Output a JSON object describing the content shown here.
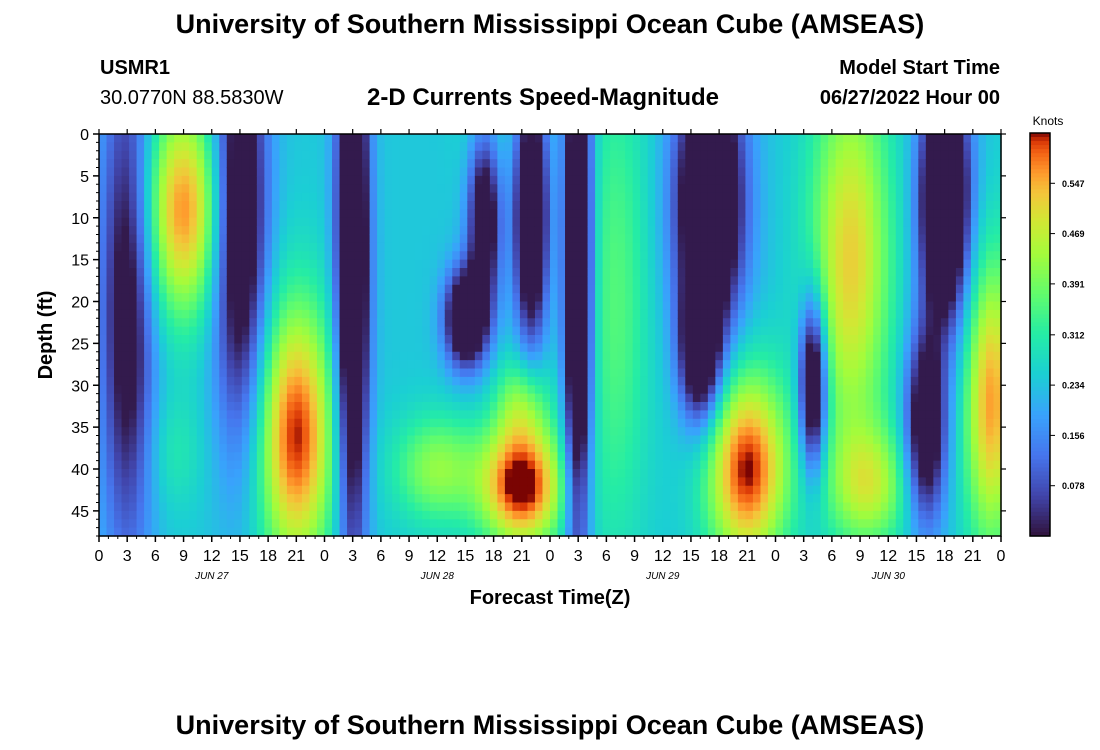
{
  "header": {
    "title": "University of Southern Mississippi Ocean Cube (AMSEAS)",
    "station_id": "USMR1",
    "location": "30.0770N  88.5830W",
    "plot_title": "2-D Currents Speed-Magnitude",
    "model_start_label": "Model Start Time",
    "model_start_value": "06/27/2022 Hour 00"
  },
  "footer": {
    "title": "University of Southern Mississippi Ocean Cube (AMSEAS)"
  },
  "chart_data": {
    "type": "heatmap",
    "title": "2-D Currents Speed-Magnitude",
    "xlabel": "Forecast Time(Z)",
    "ylabel": "Depth (ft)",
    "x_range_hours": [
      0,
      96
    ],
    "y_range_ft": [
      0,
      48
    ],
    "x_ticks": [
      {
        "hour": 0,
        "label": "0"
      },
      {
        "hour": 3,
        "label": "3"
      },
      {
        "hour": 6,
        "label": "6"
      },
      {
        "hour": 9,
        "label": "9"
      },
      {
        "hour": 12,
        "label": "12"
      },
      {
        "hour": 15,
        "label": "15"
      },
      {
        "hour": 18,
        "label": "18"
      },
      {
        "hour": 21,
        "label": "21"
      },
      {
        "hour": 24,
        "label": "0"
      },
      {
        "hour": 27,
        "label": "3"
      },
      {
        "hour": 30,
        "label": "6"
      },
      {
        "hour": 33,
        "label": "9"
      },
      {
        "hour": 36,
        "label": "12"
      },
      {
        "hour": 39,
        "label": "15"
      },
      {
        "hour": 42,
        "label": "18"
      },
      {
        "hour": 45,
        "label": "21"
      },
      {
        "hour": 48,
        "label": "0"
      },
      {
        "hour": 51,
        "label": "3"
      },
      {
        "hour": 54,
        "label": "6"
      },
      {
        "hour": 57,
        "label": "9"
      },
      {
        "hour": 60,
        "label": "12"
      },
      {
        "hour": 63,
        "label": "15"
      },
      {
        "hour": 66,
        "label": "18"
      },
      {
        "hour": 69,
        "label": "21"
      },
      {
        "hour": 72,
        "label": "0"
      },
      {
        "hour": 75,
        "label": "3"
      },
      {
        "hour": 78,
        "label": "6"
      },
      {
        "hour": 81,
        "label": "9"
      },
      {
        "hour": 84,
        "label": "12"
      },
      {
        "hour": 87,
        "label": "15"
      },
      {
        "hour": 90,
        "label": "18"
      },
      {
        "hour": 93,
        "label": "21"
      },
      {
        "hour": 96,
        "label": "0"
      }
    ],
    "day_labels": [
      {
        "hour": 12,
        "label": "JUN 27"
      },
      {
        "hour": 36,
        "label": "JUN 28"
      },
      {
        "hour": 60,
        "label": "JUN 29"
      },
      {
        "hour": 84,
        "label": "JUN 30"
      }
    ],
    "y_ticks": [
      0,
      5,
      10,
      15,
      20,
      25,
      30,
      35,
      40,
      45
    ],
    "colorbar": {
      "label": "Knots",
      "range": [
        0,
        0.625
      ],
      "ticks": [
        0.547,
        0.469,
        0.391,
        0.312,
        0.234,
        0.156,
        0.078
      ]
    },
    "blobs": [
      {
        "h": 9,
        "d": 9,
        "sh": 3,
        "sd": 9,
        "v": 0.57
      },
      {
        "h": 8,
        "d": 38,
        "sh": 2.2,
        "sd": 5,
        "v": 0.3
      },
      {
        "h": 21,
        "d": 36,
        "sh": 2.8,
        "sd": 11,
        "v": 0.62
      },
      {
        "h": 36,
        "d": 40,
        "sh": 3.2,
        "sd": 4.5,
        "v": 0.42
      },
      {
        "h": 45,
        "d": 42,
        "sh": 3,
        "sd": 5,
        "v": 0.66
      },
      {
        "h": 45,
        "d": 32,
        "sh": 2,
        "sd": 4,
        "v": 0.4
      },
      {
        "h": 41,
        "d": 0,
        "sh": 1.8,
        "sd": 5,
        "v": 0.3
      },
      {
        "h": 55,
        "d": 20,
        "sh": 2.5,
        "sd": 22,
        "v": 0.36
      },
      {
        "h": 69,
        "d": 40,
        "sh": 3,
        "sd": 8,
        "v": 0.63
      },
      {
        "h": 80,
        "d": 15,
        "sh": 3,
        "sd": 16,
        "v": 0.52
      },
      {
        "h": 82,
        "d": 42,
        "sh": 3,
        "sd": 5,
        "v": 0.44
      },
      {
        "h": 95,
        "d": 32,
        "sh": 2,
        "sd": 12,
        "v": 0.56
      },
      {
        "h": 3,
        "d": 20,
        "sh": 2,
        "sd": 22,
        "v": -0.05
      },
      {
        "h": 15,
        "d": 10,
        "sh": 2,
        "sd": 18,
        "v": -0.12
      },
      {
        "h": 27,
        "d": 15,
        "sh": 1.2,
        "sd": 25,
        "v": -0.22
      },
      {
        "h": 39,
        "d": 22,
        "sh": 1.5,
        "sd": 4,
        "v": -0.18
      },
      {
        "h": 41,
        "d": 10,
        "sh": 1.2,
        "sd": 8,
        "v": -0.1
      },
      {
        "h": 51,
        "d": 16,
        "sh": 1,
        "sd": 24,
        "v": -0.24
      },
      {
        "h": 46,
        "d": 10,
        "sh": 1.2,
        "sd": 10,
        "v": -0.2
      },
      {
        "h": 65,
        "d": 8,
        "sh": 2.5,
        "sd": 11,
        "v": -0.24
      },
      {
        "h": 64,
        "d": 26,
        "sh": 1.5,
        "sd": 6,
        "v": -0.12
      },
      {
        "h": 76,
        "d": 30,
        "sh": 1,
        "sd": 7,
        "v": -0.18
      },
      {
        "h": 90,
        "d": 8,
        "sh": 1.8,
        "sd": 10,
        "v": -0.28
      },
      {
        "h": 88,
        "d": 35,
        "sh": 1.5,
        "sd": 8,
        "v": -0.12
      }
    ]
  }
}
